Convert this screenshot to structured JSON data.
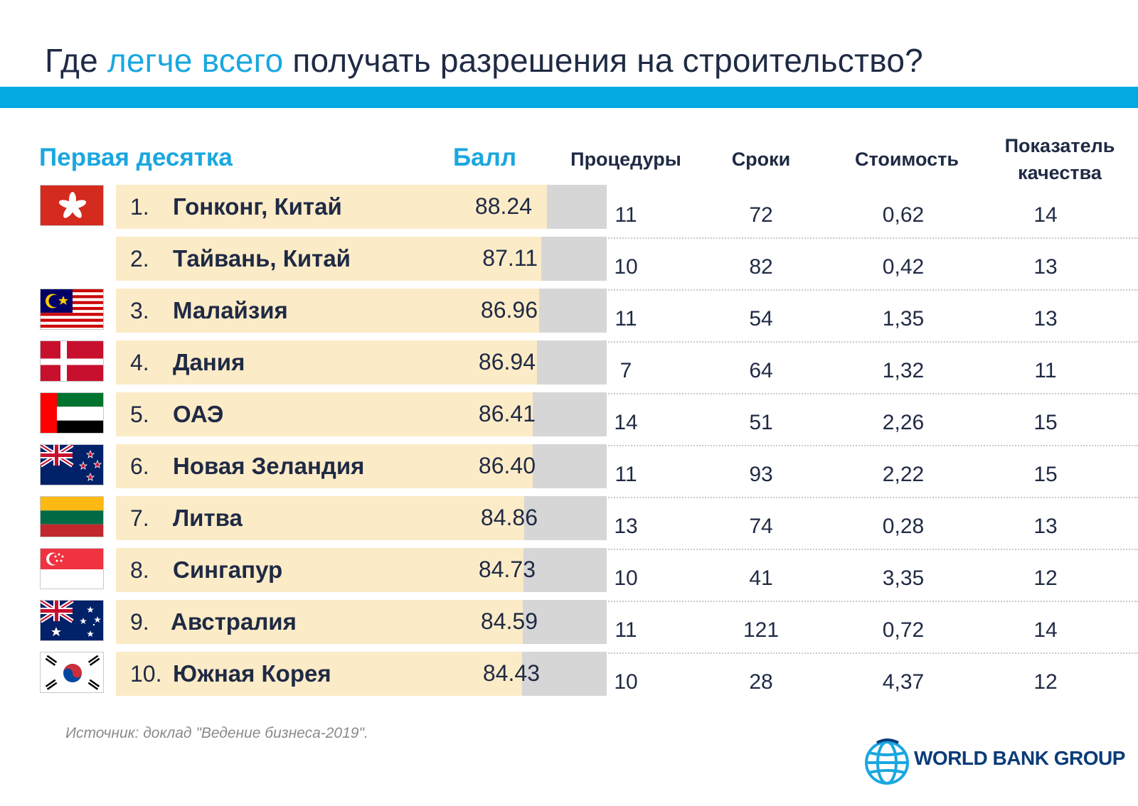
{
  "title": {
    "prefix": "Где ",
    "highlight": "легче всего",
    "suffix": " получать разрешения на строительство?"
  },
  "headers": {
    "top10": "Первая десятка",
    "score": "Балл",
    "procedures": "Процедуры",
    "time": "Сроки",
    "cost": "Стоимость",
    "quality_line1": "Показатель",
    "quality_line2": "качества"
  },
  "rows": [
    {
      "rank": "1.",
      "country": "Гонконг, Китай",
      "score": "88.24",
      "procedures": "11",
      "time": "72",
      "cost": "0,62",
      "quality": "14",
      "flag_icon": "hong-kong-flag-icon"
    },
    {
      "rank": "2.",
      "country": "Тайвань, Китай",
      "score": "87.11",
      "procedures": "10",
      "time": "82",
      "cost": "0,42",
      "quality": "13",
      "flag_icon": ""
    },
    {
      "rank": "3.",
      "country": "Малайзия",
      "score": "86.96",
      "procedures": "11",
      "time": "54",
      "cost": "1,35",
      "quality": "13",
      "flag_icon": "malaysia-flag-icon"
    },
    {
      "rank": "4.",
      "country": "Дания",
      "score": "86.94",
      "procedures": "7",
      "time": "64",
      "cost": "1,32",
      "quality": "11",
      "flag_icon": "denmark-flag-icon"
    },
    {
      "rank": "5.",
      "country": "ОАЭ",
      "score": "86.41",
      "procedures": "14",
      "time": "51",
      "cost": "2,26",
      "quality": "15",
      "flag_icon": "uae-flag-icon"
    },
    {
      "rank": "6.",
      "country": "Новая Зеландия",
      "score": "86.40",
      "procedures": "11",
      "time": "93",
      "cost": "2,22",
      "quality": "15",
      "flag_icon": "new-zealand-flag-icon"
    },
    {
      "rank": "7.",
      "country": "Литва",
      "score": "84.86",
      "procedures": "13",
      "time": "74",
      "cost": "0,28",
      "quality": "13",
      "flag_icon": "lithuania-flag-icon"
    },
    {
      "rank": "8.",
      "country": "Сингапур",
      "score": "84.73",
      "procedures": "10",
      "time": "41",
      "cost": "3,35",
      "quality": "12",
      "flag_icon": "singapore-flag-icon"
    },
    {
      "rank": "9.",
      "country": "Австралия",
      "score": "84.59",
      "procedures": "11",
      "time": "121",
      "cost": "0,72",
      "quality": "14",
      "flag_icon": "australia-flag-icon"
    },
    {
      "rank": "10.",
      "country": "Южная Корея",
      "score": "84.43",
      "procedures": "10",
      "time": "28",
      "cost": "4,37",
      "quality": "12",
      "flag_icon": "south-korea-flag-icon"
    }
  ],
  "source": "Источник: доклад \"Ведение бизнеса-2019\".",
  "logo": {
    "text": "WORLD BANK GROUP",
    "icon": "world-bank-globe-icon"
  },
  "colors": {
    "accent": "#1aa7df",
    "band": "#03a9e0",
    "bar_fill": "#fcebc7",
    "bar_bg": "#d6d6d6",
    "text": "#1f2a44"
  }
}
